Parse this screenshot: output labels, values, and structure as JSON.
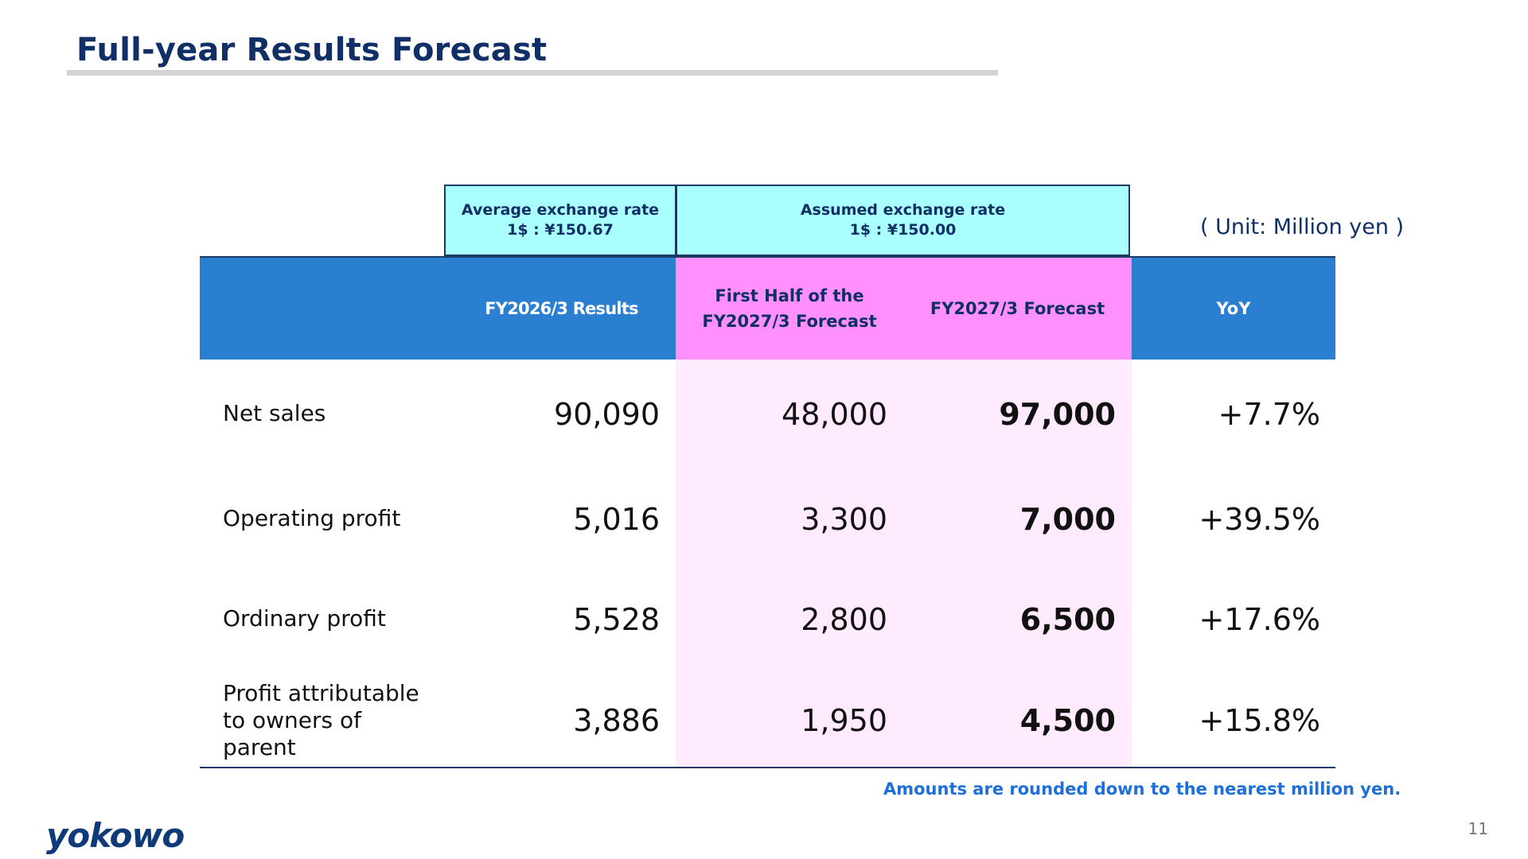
{
  "header": {
    "title": "Full-year Results Forecast"
  },
  "rates": {
    "average_label": "Average exchange rate",
    "average_value": "1$ : ¥150.67",
    "assumed_label": "Assumed exchange rate",
    "assumed_value": "1$ : ¥150.00"
  },
  "unit": "( Unit: Million yen )",
  "table": {
    "columns": [
      "",
      "FY2026/3 Results",
      "First Half of the FY2027/3 Forecast",
      "FY2027/3 Forecast",
      "YoY"
    ],
    "rows": [
      {
        "label": "Net sales",
        "fy2026_results": "90,090",
        "h1_fy2027_forecast": "48,000",
        "fy2027_forecast": "97,000",
        "yoy": "+7.7%"
      },
      {
        "label": "Operating profit",
        "fy2026_results": "5,016",
        "h1_fy2027_forecast": "3,300",
        "fy2027_forecast": "7,000",
        "yoy": "+39.5%"
      },
      {
        "label": "Ordinary profit",
        "fy2026_results": "5,528",
        "h1_fy2027_forecast": "2,800",
        "fy2027_forecast": "6,500",
        "yoy": "+17.6%"
      },
      {
        "label": "Profit attributable to owners of parent",
        "fy2026_results": "3,886",
        "h1_fy2027_forecast": "1,950",
        "fy2027_forecast": "4,500",
        "yoy": "+15.8%"
      }
    ]
  },
  "note": "Amounts are rounded down to the nearest million yen.",
  "footer": {
    "logo_text": "yokowo",
    "page_number": "11"
  },
  "colors": {
    "title": "#0f2f66",
    "header_blue": "#2a7fd0",
    "header_pink": "#ff90fc",
    "column_pink": "#ffeafe",
    "rate_box": "#aaffff",
    "note_blue": "#1e6fd9"
  }
}
